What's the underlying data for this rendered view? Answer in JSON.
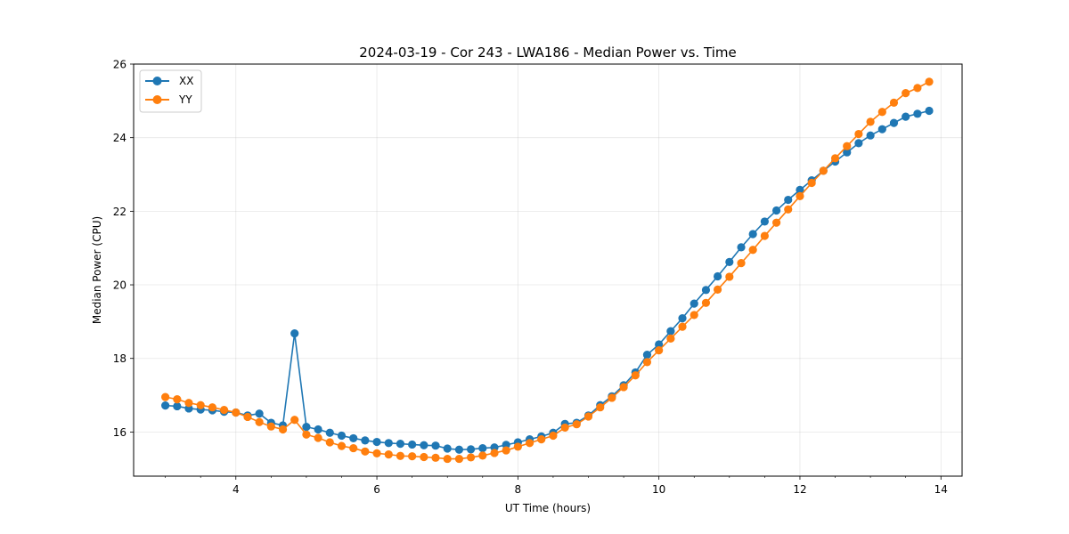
{
  "chart_data": {
    "type": "line",
    "title": "2024-03-19 - Cor 243 - LWA186 - Median Power vs. Time",
    "xlabel": "UT Time (hours)",
    "ylabel": "Median Power (CPU)",
    "xlim": [
      2.55,
      14.3
    ],
    "ylim": [
      14.8,
      26.0
    ],
    "xticks": [
      4,
      6,
      8,
      10,
      12,
      14
    ],
    "xtick_labels": [
      "4",
      "6",
      "8",
      "10",
      "12",
      "14"
    ],
    "xminor": [
      3,
      3.5,
      4.5,
      5,
      5.5,
      6.5,
      7,
      7.5,
      8.5,
      9,
      9.5,
      10.5,
      11,
      11.5,
      12.5,
      13,
      13.5
    ],
    "yticks": [
      16,
      18,
      20,
      22,
      24,
      26
    ],
    "ytick_labels": [
      "16",
      "18",
      "20",
      "22",
      "24",
      "26"
    ],
    "grid": true,
    "legend_position": "top-left",
    "x": [
      3.0,
      3.167,
      3.333,
      3.5,
      3.667,
      3.833,
      4.0,
      4.167,
      4.333,
      4.5,
      4.667,
      4.833,
      5.0,
      5.167,
      5.333,
      5.5,
      5.667,
      5.833,
      6.0,
      6.167,
      6.333,
      6.5,
      6.667,
      6.833,
      7.0,
      7.167,
      7.333,
      7.5,
      7.667,
      7.833,
      8.0,
      8.167,
      8.333,
      8.5,
      8.667,
      8.833,
      9.0,
      9.167,
      9.333,
      9.5,
      9.667,
      9.833,
      10.0,
      10.167,
      10.333,
      10.5,
      10.667,
      10.833,
      11.0,
      11.167,
      11.333,
      11.5,
      11.667,
      11.833,
      12.0,
      12.167,
      12.333,
      12.5,
      12.667,
      12.833,
      13.0,
      13.167,
      13.333,
      13.5,
      13.667,
      13.833
    ],
    "series": [
      {
        "name": "XX",
        "color": "#1f77b4",
        "values": [
          16.72,
          16.7,
          16.64,
          16.61,
          16.59,
          16.55,
          16.53,
          16.45,
          16.5,
          16.25,
          16.18,
          18.68,
          16.14,
          16.07,
          15.98,
          15.9,
          15.83,
          15.77,
          15.73,
          15.7,
          15.68,
          15.66,
          15.64,
          15.63,
          15.55,
          15.52,
          15.53,
          15.56,
          15.58,
          15.65,
          15.72,
          15.8,
          15.88,
          15.98,
          16.22,
          16.25,
          16.45,
          16.73,
          16.97,
          17.27,
          17.62,
          18.1,
          18.38,
          18.74,
          19.09,
          19.49,
          19.86,
          20.23,
          20.62,
          21.02,
          21.38,
          21.72,
          22.02,
          22.31,
          22.58,
          22.84,
          23.1,
          23.35,
          23.6,
          23.85,
          24.06,
          24.23,
          24.4,
          24.57,
          24.65,
          24.73
        ]
      },
      {
        "name": "YY",
        "color": "#ff7f0e",
        "values": [
          16.95,
          16.89,
          16.79,
          16.73,
          16.67,
          16.6,
          16.53,
          16.41,
          16.27,
          16.15,
          16.07,
          16.33,
          15.93,
          15.84,
          15.72,
          15.62,
          15.56,
          15.47,
          15.42,
          15.39,
          15.35,
          15.34,
          15.32,
          15.3,
          15.27,
          15.27,
          15.31,
          15.36,
          15.43,
          15.5,
          15.6,
          15.7,
          15.8,
          15.9,
          16.12,
          16.21,
          16.42,
          16.67,
          16.93,
          17.22,
          17.54,
          17.9,
          18.22,
          18.54,
          18.86,
          19.18,
          19.51,
          19.87,
          20.22,
          20.59,
          20.95,
          21.33,
          21.69,
          22.05,
          22.41,
          22.77,
          23.1,
          23.44,
          23.77,
          24.1,
          24.43,
          24.7,
          24.95,
          25.21,
          25.35,
          25.52
        ]
      }
    ]
  }
}
